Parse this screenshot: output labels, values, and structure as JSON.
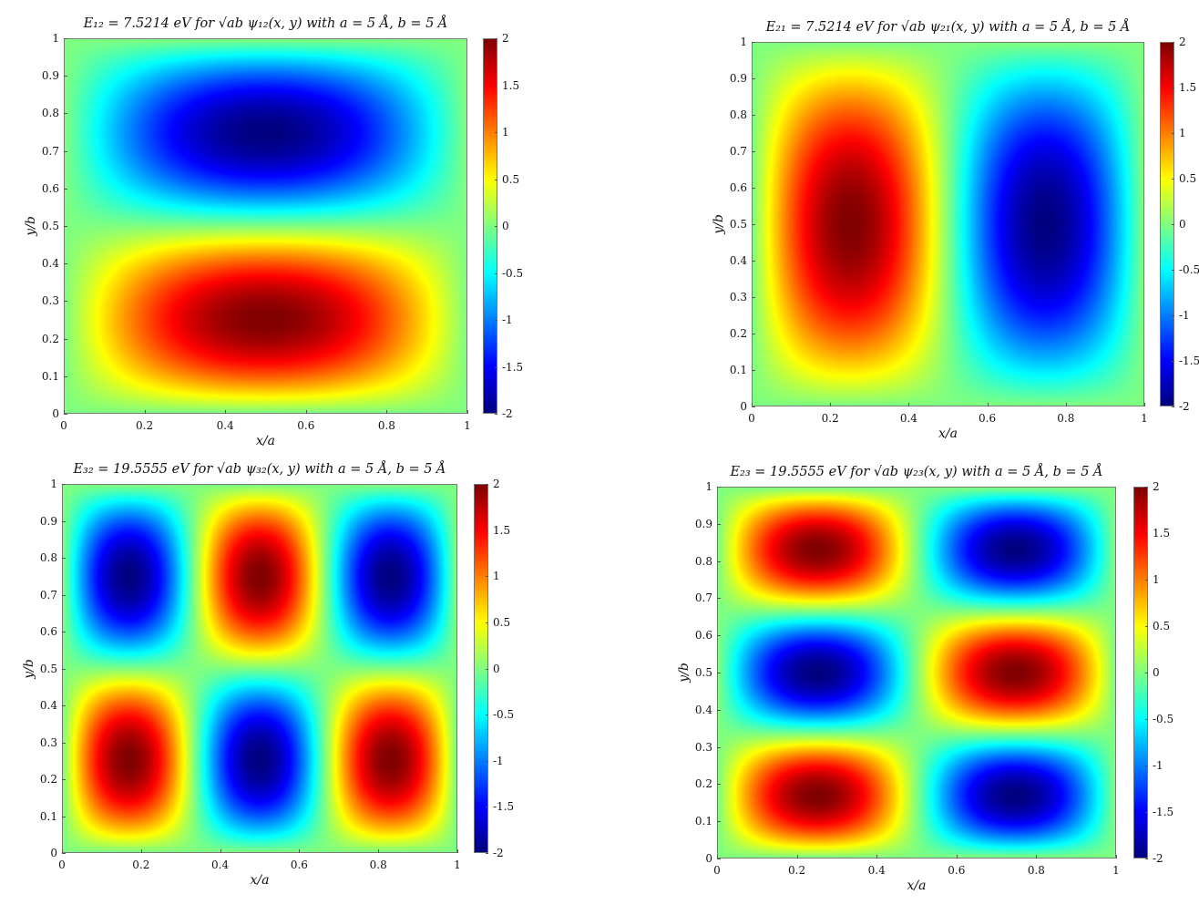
{
  "chart_data": [
    {
      "type": "heatmap",
      "title": "E₁₂ = 7.5214 eV for √ab ψ₁₂(x, y) with a = 5 Å, b = 5 Å",
      "xlabel": "x/a",
      "ylabel": "y/b",
      "function": "2*sin(1*pi*x)*sin(2*pi*y)",
      "nx": 1,
      "ny": 2,
      "amplitude": 2,
      "xlim": [
        0,
        1
      ],
      "ylim": [
        0,
        1
      ],
      "clim": [
        -2,
        2
      ],
      "xticks": [
        "0",
        "0.2",
        "0.4",
        "0.6",
        "0.8",
        "1"
      ],
      "yticks": [
        "0",
        "0.1",
        "0.2",
        "0.3",
        "0.4",
        "0.5",
        "0.6",
        "0.7",
        "0.8",
        "0.9",
        "1"
      ],
      "cticks": [
        "-2",
        "-1.5",
        "-1",
        "-0.5",
        "0",
        "0.5",
        "1",
        "1.5",
        "2"
      ],
      "colormap": "jet"
    },
    {
      "type": "heatmap",
      "title": "E₂₁ = 7.5214 eV for √ab ψ₂₁(x, y) with a = 5 Å, b = 5 Å",
      "xlabel": "x/a",
      "ylabel": "y/b",
      "function": "2*sin(2*pi*x)*sin(1*pi*y)",
      "nx": 2,
      "ny": 1,
      "amplitude": 2,
      "xlim": [
        0,
        1
      ],
      "ylim": [
        0,
        1
      ],
      "clim": [
        -2,
        2
      ],
      "xticks": [
        "0",
        "0.2",
        "0.4",
        "0.6",
        "0.8",
        "1"
      ],
      "yticks": [
        "0",
        "0.1",
        "0.2",
        "0.3",
        "0.4",
        "0.5",
        "0.6",
        "0.7",
        "0.8",
        "0.9",
        "1"
      ],
      "cticks": [
        "-2",
        "-1.5",
        "-1",
        "-0.5",
        "0",
        "0.5",
        "1",
        "1.5",
        "2"
      ],
      "colormap": "jet"
    },
    {
      "type": "heatmap",
      "title": "E₃₂ = 19.5555 eV for √ab ψ₃₂(x, y) with a = 5 Å, b = 5 Å",
      "xlabel": "x/a",
      "ylabel": "y/b",
      "function": "2*sin(3*pi*x)*sin(2*pi*y)",
      "nx": 3,
      "ny": 2,
      "amplitude": 2,
      "xlim": [
        0,
        1
      ],
      "ylim": [
        0,
        1
      ],
      "clim": [
        -2,
        2
      ],
      "xticks": [
        "0",
        "0.2",
        "0.4",
        "0.6",
        "0.8",
        "1"
      ],
      "yticks": [
        "0",
        "0.1",
        "0.2",
        "0.3",
        "0.4",
        "0.5",
        "0.6",
        "0.7",
        "0.8",
        "0.9",
        "1"
      ],
      "cticks": [
        "-2",
        "-1.5",
        "-1",
        "-0.5",
        "0",
        "0.5",
        "1",
        "1.5",
        "2"
      ],
      "colormap": "jet"
    },
    {
      "type": "heatmap",
      "title": "E₂₃ = 19.5555 eV for √ab ψ₂₃(x, y) with a = 5 Å, b = 5 Å",
      "xlabel": "x/a",
      "ylabel": "y/b",
      "function": "2*sin(2*pi*x)*sin(3*pi*y)",
      "nx": 2,
      "ny": 3,
      "amplitude": 2,
      "xlim": [
        0,
        1
      ],
      "ylim": [
        0,
        1
      ],
      "clim": [
        -2,
        2
      ],
      "xticks": [
        "0",
        "0.2",
        "0.4",
        "0.6",
        "0.8",
        "1"
      ],
      "yticks": [
        "0",
        "0.1",
        "0.2",
        "0.3",
        "0.4",
        "0.5",
        "0.6",
        "0.7",
        "0.8",
        "0.9",
        "1"
      ],
      "cticks": [
        "-2",
        "-1.5",
        "-1",
        "-0.5",
        "0",
        "0.5",
        "1",
        "1.5",
        "2"
      ],
      "colormap": "jet"
    }
  ]
}
